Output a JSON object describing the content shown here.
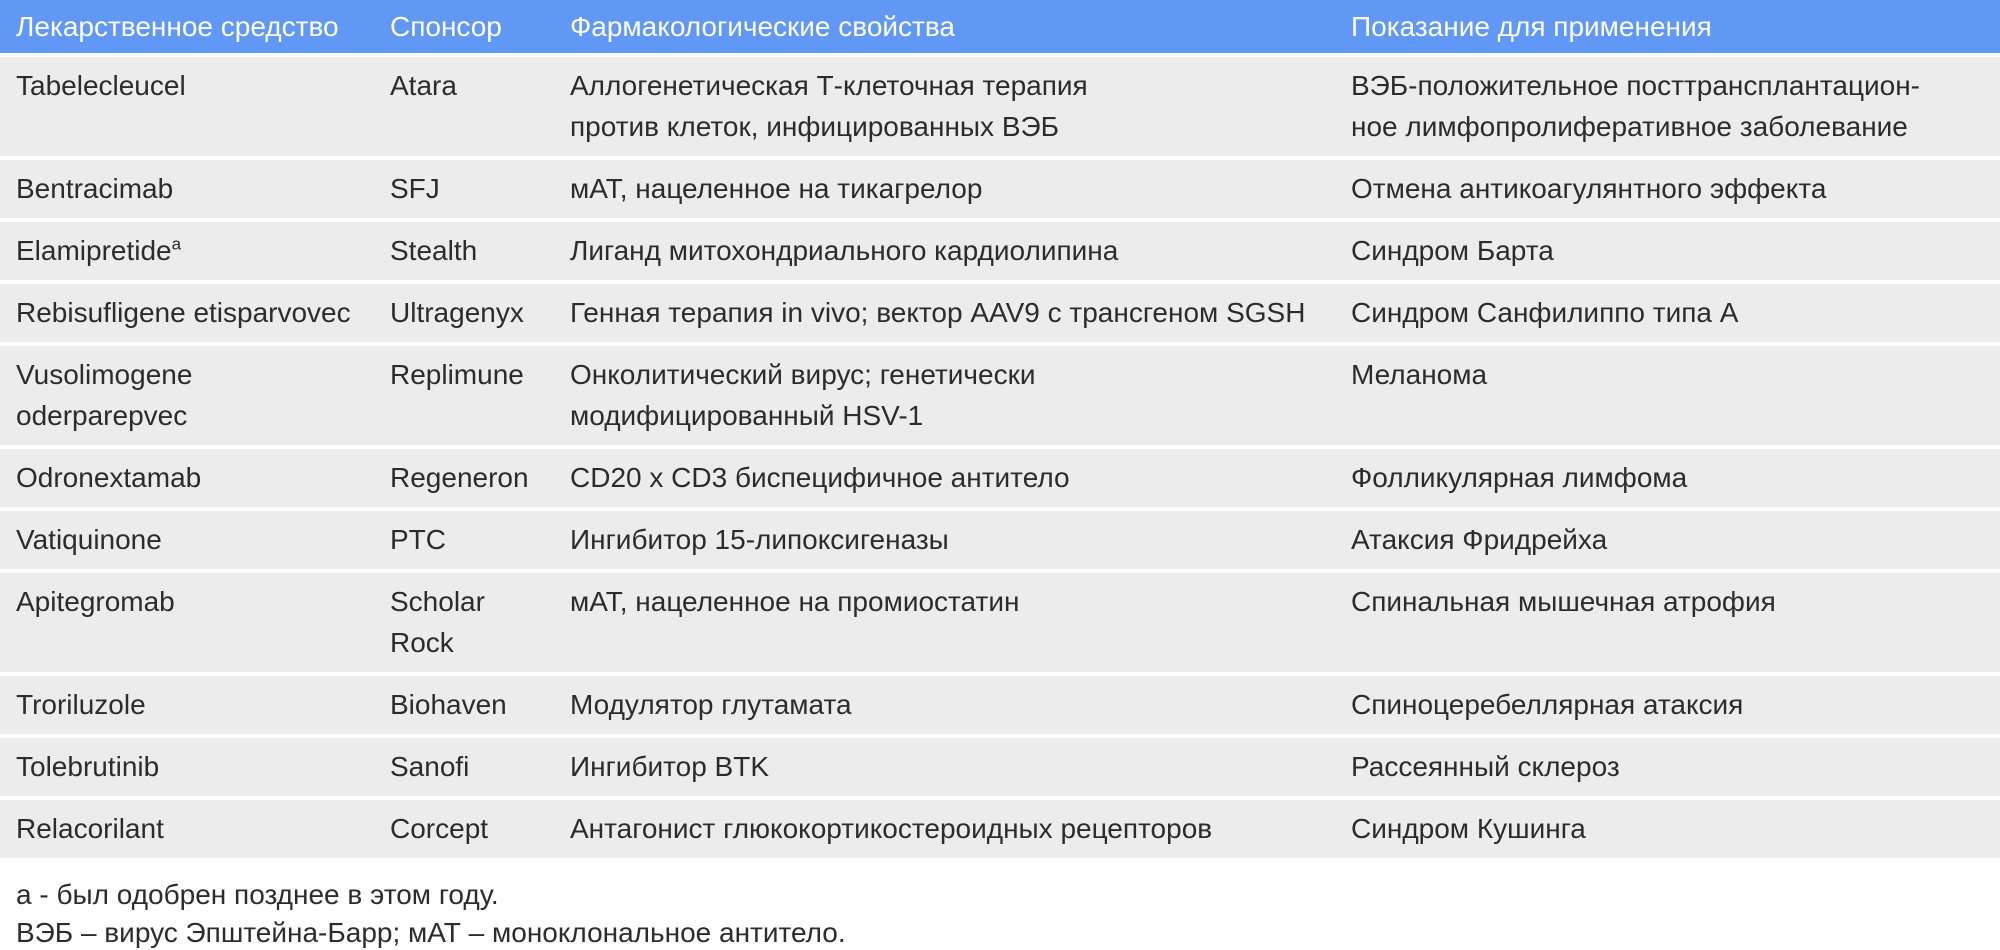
{
  "colors": {
    "page_bg": "#ffffff",
    "header_bg": "#6298f5",
    "header_text": "#ffffff",
    "row_bg": "#ececec",
    "body_text": "#2c2c2c"
  },
  "table": {
    "columns": [
      {
        "label": "Лекарственное средство"
      },
      {
        "label": "Спонсор"
      },
      {
        "label": "Фармакологические свойства"
      },
      {
        "label": "Показание для применения"
      }
    ],
    "rows": [
      {
        "drug": "Tabelecleucel",
        "sponsor": "Atara",
        "pharmacology": "Аллогенетическая Т-клеточная терапия\nпротив клеток, инфицированных ВЭБ",
        "indication": "ВЭБ-положительное посттрансплантацион-\nное лимфопролиферативное заболевание"
      },
      {
        "drug": "Bentracimab",
        "sponsor": "SFJ",
        "pharmacology": "мАТ, нацеленное на тикагрелор",
        "indication": "Отмена антикоагулянтного эффекта"
      },
      {
        "drug": "Elamipretide",
        "drug_superscript": "a",
        "sponsor": "Stealth",
        "pharmacology": "Лиганд митохондриального кардиолипина",
        "indication": "Синдром Барта"
      },
      {
        "drug": "Rebisufligene etisparvovec",
        "sponsor": "Ultragenyx",
        "pharmacology": "Генная терапия in vivo; вектор AAV9 с трансгеном SGSH",
        "indication": "Синдром Санфилиппо типа A"
      },
      {
        "drug": "Vusolimogene oderparepvec",
        "sponsor": "Replimune",
        "pharmacology": "Онколитический вирус; генетически\nмодифицированный HSV-1",
        "indication": "Меланома"
      },
      {
        "drug": "Odronextamab",
        "sponsor": "Regeneron",
        "pharmacology": "CD20 x CD3 биспецифичное антитело",
        "indication": "Фолликулярная лимфома"
      },
      {
        "drug": "Vatiquinone",
        "sponsor": "PTC",
        "pharmacology": "Ингибитор 15-липоксигеназы",
        "indication": "Атаксия Фридрейха"
      },
      {
        "drug": "Apitegromab",
        "sponsor": "Scholar\nRock",
        "pharmacology": "мАТ, нацеленное на промиостатин",
        "indication": "Спинальная мышечная атрофия"
      },
      {
        "drug": "Troriluzole",
        "sponsor": "Biohaven",
        "pharmacology": "Модулятор глутамата",
        "indication": "Спиноцеребеллярная атаксия"
      },
      {
        "drug": "Tolebrutinib",
        "sponsor": "Sanofi",
        "pharmacology": "Ингибитор BTK",
        "indication": "Рассеянный склероз"
      },
      {
        "drug": "Relacorilant",
        "sponsor": "Corcept",
        "pharmacology": "Антагонист глюкокортикостероидных рецепторов",
        "indication": "Синдром Кушинга"
      }
    ]
  },
  "footnotes": [
    "а - был одобрен позднее в этом году.",
    "ВЭБ – вирус Эпштейна-Барр; мАТ – моноклональное антитело."
  ]
}
